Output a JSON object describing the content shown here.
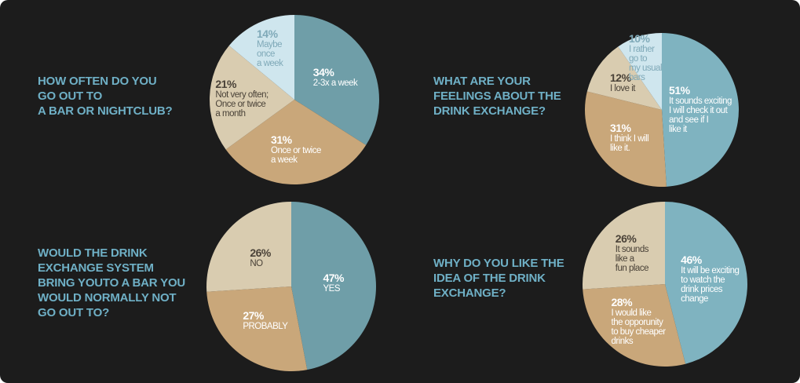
{
  "chart_data": [
    {
      "type": "pie",
      "title": "HOW OFTEN DO YOU\nGO OUT TO\nA BAR OR NIGHTCLUB?",
      "categories": [
        "2-3x a week",
        "Once or twice\na week",
        "Not very often;\nOnce or twice\na month",
        "Maybe\nonce\na week"
      ],
      "values": [
        34,
        31,
        21,
        14
      ],
      "value_labels": [
        "34%",
        "31%",
        "21%",
        "14%"
      ],
      "colors": [
        "#6f9ea8",
        "#c9a77a",
        "#d9ccb0",
        "#cfe6ee"
      ],
      "text_colors": [
        "#ffffff",
        "#ffffff",
        "#4a4238",
        "#7fa9b8"
      ]
    },
    {
      "type": "pie",
      "title": "WHAT ARE YOUR\nFEELINGS ABOUT THE\nDRINK EXCHANGE?",
      "categories": [
        "It sounds exciting\nI will check it out\nand see if I\nlike it",
        "I think I will\nlike it.",
        "I love it",
        "I rather\ngo to\nmy usual\nbars"
      ],
      "values": [
        51,
        31,
        12,
        10
      ],
      "value_labels": [
        "51%",
        "31%",
        "12%",
        "10%"
      ],
      "colors": [
        "#7fb3c0",
        "#c9a77a",
        "#d9ccb0",
        "#cfe6ee"
      ],
      "text_colors": [
        "#ffffff",
        "#ffffff",
        "#4a4238",
        "#7fa9b8"
      ]
    },
    {
      "type": "pie",
      "title": "WOULD THE DRINK\nEXCHANGE SYSTEM\nBRING YOUTO A BAR YOU\nWOULD NORMALLY NOT\nGO OUT TO?",
      "categories": [
        "YES",
        "PROBABLY",
        "NO"
      ],
      "values": [
        47,
        27,
        26
      ],
      "value_labels": [
        "47%",
        "27%",
        "26%"
      ],
      "colors": [
        "#6f9ea8",
        "#c9a77a",
        "#d9ccb0"
      ],
      "text_colors": [
        "#ffffff",
        "#ffffff",
        "#4a4238"
      ]
    },
    {
      "type": "pie",
      "title": "WHY DO YOU LIKE THE\nIDEA OF THE DRINK\nEXCHANGE?",
      "categories": [
        "It will be exciting\nto watch the\ndrink prices\nchange",
        "I would like\nthe opporunity\nto buy cheaper\ndrinks",
        "It sounds\nlike a\nfun place"
      ],
      "values": [
        46,
        28,
        26
      ],
      "value_labels": [
        "46%",
        "28%",
        "26%"
      ],
      "colors": [
        "#7fb3c0",
        "#c9a77a",
        "#d9ccb0"
      ],
      "text_colors": [
        "#ffffff",
        "#ffffff",
        "#4a4238"
      ]
    }
  ]
}
